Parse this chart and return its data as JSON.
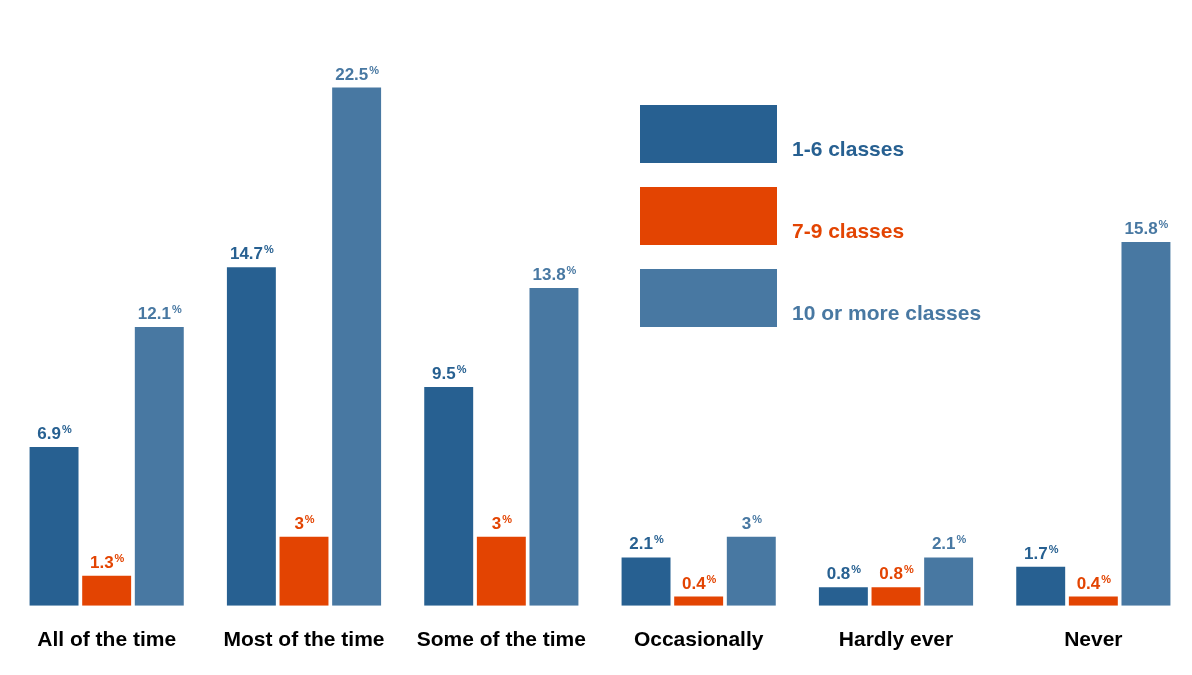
{
  "chart_data": {
    "type": "bar",
    "categories": [
      "All of the time",
      "Most of the time",
      "Some of the time",
      "Occasionally",
      "Hardly ever",
      "Never"
    ],
    "series": [
      {
        "name": "1-6 classes",
        "color": "#276091",
        "values": [
          6.9,
          14.7,
          9.5,
          2.1,
          0.8,
          1.7
        ],
        "value_labels": [
          "6.9$^{%}$",
          "14.7$^{%}$",
          "9.5$^{%}$",
          "2.1$^{%}$",
          "0.8$^{%}$",
          "1.7$^{%}$"
        ]
      },
      {
        "name": "7-9 classes",
        "color": "#e34402",
        "values": [
          1.3,
          3,
          3,
          0.4,
          0.8,
          0.4
        ],
        "value_labels": [
          "1.3$^{%}$",
          "3$^{%}$",
          "3$^{%}$",
          "0.4$^{%}$",
          "0.8$^{%}$",
          "0.4$^{%}$"
        ]
      },
      {
        "name": "10 or more classes",
        "color": "#4878a2",
        "values": [
          12.1,
          22.5,
          13.8,
          3,
          2.1,
          15.8
        ],
        "value_labels": [
          "12.1$^{%}$",
          "22.5$^{%}$",
          "13.8$^{%}$",
          "3$^{%}$",
          "2.1$^{%}$",
          "15.8$^{%}$"
        ]
      }
    ],
    "tick_labels": "x",
    "grid": false,
    "legend": "top right"
  }
}
